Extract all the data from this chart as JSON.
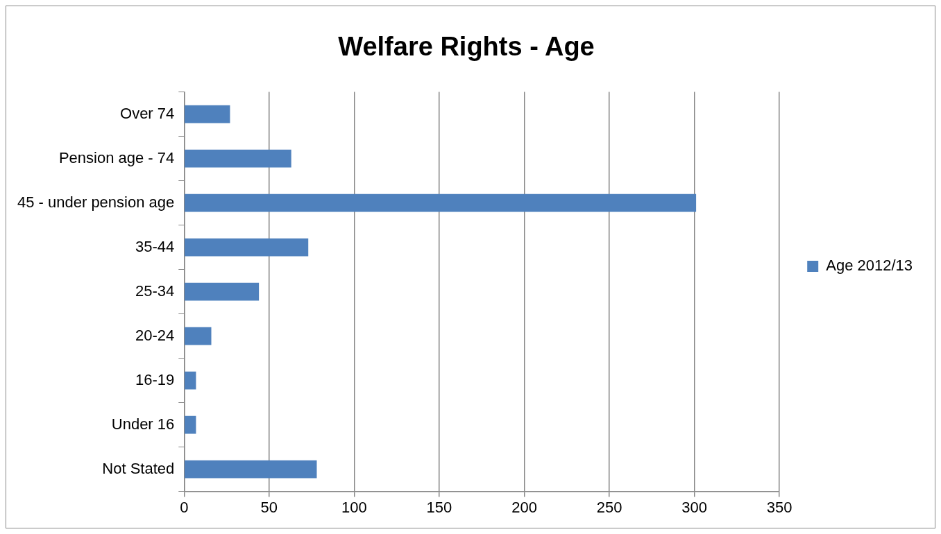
{
  "chart_data": {
    "type": "bar",
    "orientation": "horizontal",
    "title": "Welfare Rights - Age",
    "categories": [
      "Over 74",
      "Pension age - 74",
      "45 - under pension age",
      "35-44",
      "25-34",
      "20-24",
      "16-19",
      "Under 16",
      "Not Stated"
    ],
    "series": [
      {
        "name": "Age 2012/13",
        "color": "#4f81bd",
        "values": [
          27,
          63,
          301,
          73,
          44,
          16,
          7,
          7,
          78
        ]
      }
    ],
    "xlim": [
      0,
      350
    ],
    "xticks": [
      0,
      50,
      100,
      150,
      200,
      250,
      300,
      350
    ],
    "grid": "x",
    "legend": "right"
  }
}
